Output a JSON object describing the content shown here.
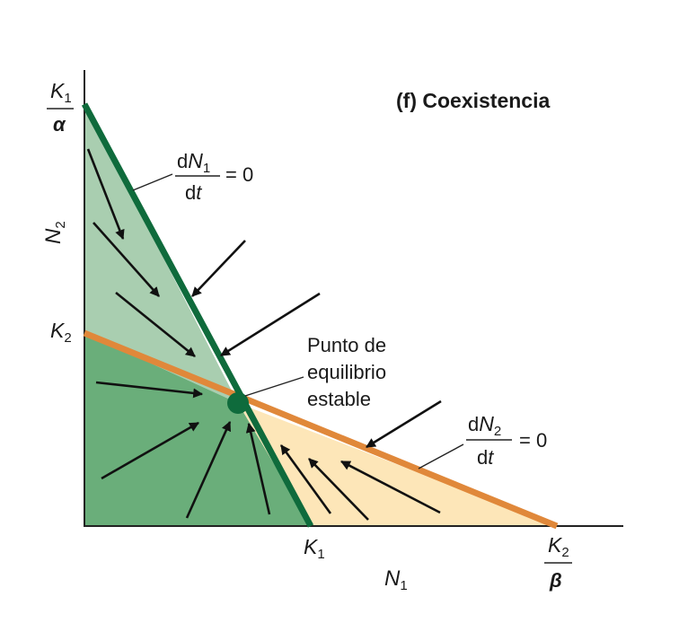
{
  "title": "(f)  Coexistencia",
  "axes": {
    "x_label_main": "N",
    "x_label_sub": "1",
    "y_label_main": "N",
    "y_label_sub": "2"
  },
  "ticks": {
    "y_top_num_main": "K",
    "y_top_num_sub": "1",
    "y_top_den": "α",
    "y_mid_main": "K",
    "y_mid_sub": "2",
    "x_mid_main": "K",
    "x_mid_sub": "1",
    "x_right_num_main": "K",
    "x_right_num_sub": "2",
    "x_right_den": "β"
  },
  "isoclines": {
    "n1": {
      "d": "d",
      "var_main": "N",
      "var_sub": "1",
      "dt_d": "d",
      "dt_t": "t",
      "equals": "= 0",
      "color": "#0f6b3c"
    },
    "n2": {
      "d": "d",
      "var_main": "N",
      "var_sub": "2",
      "dt_d": "d",
      "dt_t": "t",
      "equals": "= 0",
      "color": "#e0883a"
    }
  },
  "equilibrium": {
    "line1": "Punto de",
    "line2": "equilibrio",
    "line3": "estable",
    "color": "#0f6b3c"
  },
  "regions": {
    "upper_left_color": "#a9ceb0",
    "lower_left_color": "#6aae7a",
    "lower_right_color": "#fde6b8"
  }
}
